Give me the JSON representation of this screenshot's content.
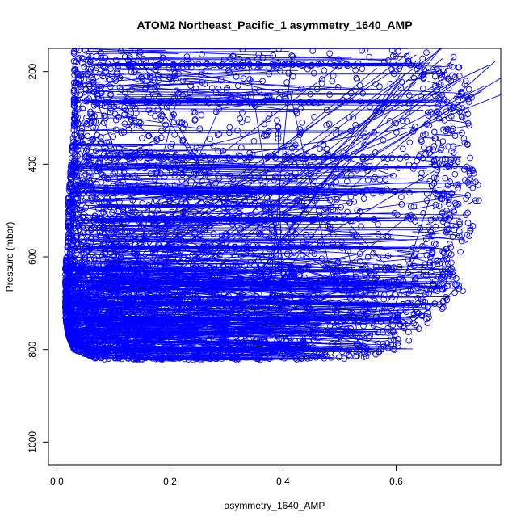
{
  "chart_data": {
    "type": "scatter",
    "title": "ATOM2 Northeast_Pacific_1 asymmetry_1640_AMP",
    "xlabel": "asymmetry_1640_AMP",
    "ylabel": "Pressure (mbar)",
    "xlim": [
      -0.015,
      0.785
    ],
    "ylim": [
      1050,
      150
    ],
    "y_inverted": true,
    "x_ticks": [
      0.0,
      0.2,
      0.4,
      0.6
    ],
    "x_tick_labels": [
      "0.0",
      "0.2",
      "0.4",
      "0.6"
    ],
    "y_ticks": [
      200,
      400,
      600,
      800,
      1000
    ],
    "y_tick_labels": [
      "200",
      "400",
      "600",
      "800",
      "1000"
    ],
    "grid": false,
    "legend": "none",
    "series_color": "#0000ff",
    "markers": "open-circles-with-lines",
    "density_profile": [
      {
        "p": 160,
        "x_min": 0.03,
        "x_max": 0.7
      },
      {
        "p": 200,
        "x_min": 0.03,
        "x_max": 0.72
      },
      {
        "p": 260,
        "x_min": 0.03,
        "x_max": 0.74
      },
      {
        "p": 320,
        "x_min": 0.03,
        "x_max": 0.73
      },
      {
        "p": 400,
        "x_min": 0.025,
        "x_max": 0.74
      },
      {
        "p": 480,
        "x_min": 0.02,
        "x_max": 0.75
      },
      {
        "p": 560,
        "x_min": 0.02,
        "x_max": 0.73
      },
      {
        "p": 620,
        "x_min": 0.015,
        "x_max": 0.7
      },
      {
        "p": 680,
        "x_min": 0.015,
        "x_max": 0.72
      },
      {
        "p": 730,
        "x_min": 0.015,
        "x_max": 0.68
      },
      {
        "p": 770,
        "x_min": 0.02,
        "x_max": 0.62
      },
      {
        "p": 800,
        "x_min": 0.03,
        "x_max": 0.63
      },
      {
        "p": 820,
        "x_min": 0.07,
        "x_max": 0.53
      }
    ],
    "dense_levels": [
      {
        "p": 185,
        "x_min": 0.05,
        "x_max": 0.7
      },
      {
        "p": 265,
        "x_min": 0.03,
        "x_max": 0.74
      },
      {
        "p": 385,
        "x_min": 0.03,
        "x_max": 0.73
      },
      {
        "p": 460,
        "x_min": 0.02,
        "x_max": 0.72
      },
      {
        "p": 520,
        "x_min": 0.02,
        "x_max": 0.7
      },
      {
        "p": 580,
        "x_min": 0.02,
        "x_max": 0.68
      },
      {
        "p": 655,
        "x_min": 0.015,
        "x_max": 0.72
      },
      {
        "p": 700,
        "x_min": 0.015,
        "x_max": 0.7
      },
      {
        "p": 735,
        "x_min": 0.015,
        "x_max": 0.68
      },
      {
        "p": 762,
        "x_min": 0.02,
        "x_max": 0.62
      },
      {
        "p": 800,
        "x_min": 0.04,
        "x_max": 0.63
      },
      {
        "p": 820,
        "x_min": 0.07,
        "x_max": 0.53
      }
    ]
  }
}
